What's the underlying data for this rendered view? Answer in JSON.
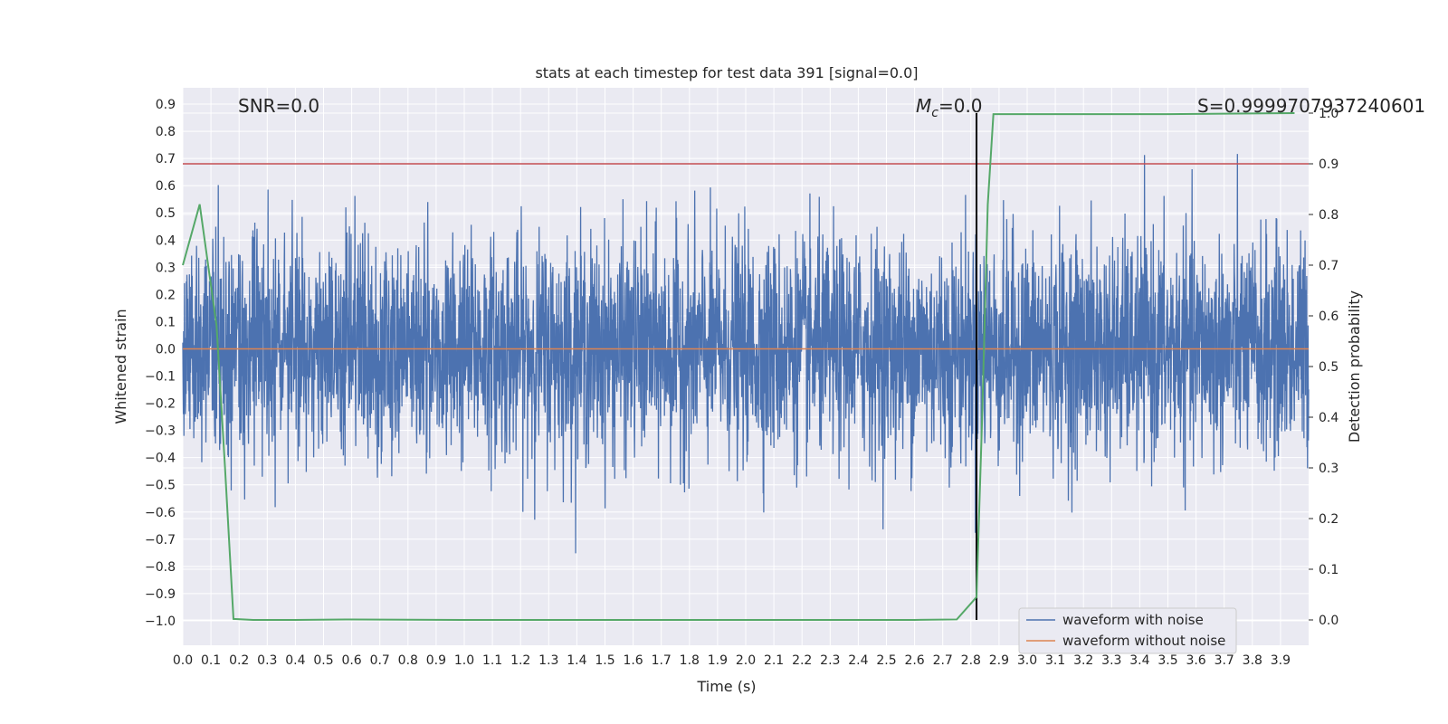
{
  "chart_data": {
    "type": "line",
    "title": "stats at each timestep for test data 391 [signal=0.0]",
    "xlabel": "Time (s)",
    "ylabel_left": "Whitened strain",
    "ylabel_right": "Detection probability",
    "xlim": [
      0.0,
      4.0
    ],
    "ylim_left": [
      -1.09,
      0.96
    ],
    "ylim_right": [
      -0.05,
      1.05
    ],
    "x_ticks": [
      "0.0",
      "0.1",
      "0.2",
      "0.3",
      "0.4",
      "0.5",
      "0.6",
      "0.7",
      "0.8",
      "0.9",
      "1.0",
      "1.1",
      "1.2",
      "1.3",
      "1.4",
      "1.5",
      "1.6",
      "1.7",
      "1.8",
      "1.9",
      "2.0",
      "2.1",
      "2.2",
      "2.3",
      "2.4",
      "2.5",
      "2.6",
      "2.7",
      "2.8",
      "2.9",
      "3.0",
      "3.1",
      "3.2",
      "3.3",
      "3.4",
      "3.5",
      "3.6",
      "3.7",
      "3.8",
      "3.9"
    ],
    "y_ticks_left": [
      "0.9",
      "0.8",
      "0.7",
      "0.6",
      "0.5",
      "0.4",
      "0.3",
      "0.2",
      "0.1",
      "0.0",
      "−0.1",
      "−0.2",
      "−0.3",
      "−0.4",
      "−0.5",
      "−0.6",
      "−0.7",
      "−0.8",
      "−0.9",
      "−1.0"
    ],
    "y_ticks_right": [
      "1.0",
      "0.9",
      "0.8",
      "0.7",
      "0.6",
      "0.5",
      "0.4",
      "0.3",
      "0.2",
      "0.1",
      "0.0"
    ],
    "annotations": {
      "snr": "SNR=0.0",
      "mc_symbol": "M",
      "mc_sub": "c",
      "mc_value": "=0.0",
      "s": "S=0.9999707937240601"
    },
    "threshold_right": 0.9,
    "marker_x": 2.82,
    "grid": true,
    "legend_position": "lower right",
    "series": [
      {
        "name": "waveform with noise",
        "axis": "left",
        "color": "#4c72b0",
        "kind": "noise",
        "amplitude_std": 0.2,
        "y_range": [
          -1.0,
          0.87
        ]
      },
      {
        "name": "waveform without noise",
        "axis": "left",
        "color": "#dd8452",
        "x": [
          0.0,
          4.0
        ],
        "y": [
          0.0,
          0.0
        ]
      },
      {
        "axis": "right",
        "color": "#55a868",
        "x": [
          0.0,
          0.06,
          0.12,
          0.15,
          0.18,
          0.25,
          0.4,
          0.6,
          1.0,
          2.0,
          2.6,
          2.75,
          2.82,
          2.84,
          2.86,
          2.88,
          3.0,
          3.5,
          3.95
        ],
        "y": [
          0.7,
          0.82,
          0.58,
          0.3,
          0.002,
          0.0,
          0.0,
          0.001,
          0.0,
          0.0,
          0.0,
          0.001,
          0.045,
          0.4,
          0.82,
          0.998,
          0.998,
          0.998,
          1.0
        ]
      }
    ],
    "colors": {
      "background": "#eaeaf2",
      "grid": "#ffffff",
      "threshold": "#c44e52",
      "marker": "#000000",
      "text": "#262626"
    }
  }
}
